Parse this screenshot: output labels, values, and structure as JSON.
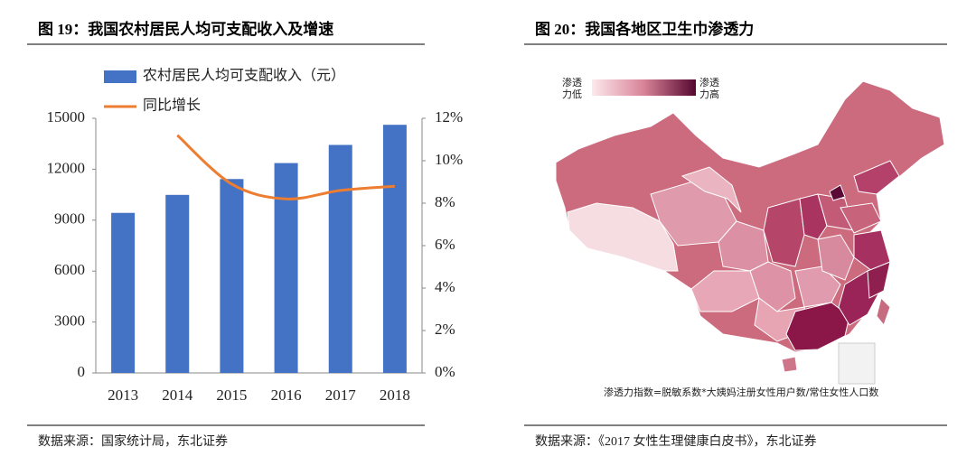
{
  "chart_data": {
    "type": "combo",
    "title": "图 19：我国农村居民人均可支配收入及增速",
    "categories": [
      "2013",
      "2014",
      "2015",
      "2016",
      "2017",
      "2018"
    ],
    "series": [
      {
        "name": "农村居民人均可支配收入（元）",
        "type": "bar",
        "color": "#4472c4",
        "values": [
          9430,
          10489,
          11422,
          12363,
          13432,
          14617
        ]
      },
      {
        "name": "同比增长",
        "type": "line",
        "axis": "y2",
        "color": "#ed7d31",
        "values": [
          null,
          11.2,
          8.9,
          8.2,
          8.6,
          8.8
        ]
      }
    ],
    "ylim": [
      0,
      15000
    ],
    "yticks": [
      0,
      3000,
      6000,
      9000,
      12000,
      15000
    ],
    "y2lim": [
      0,
      12
    ],
    "y2ticks": [
      {
        "value": 0,
        "label": "0%"
      },
      {
        "value": 2,
        "label": "2%"
      },
      {
        "value": 4,
        "label": "4%"
      },
      {
        "value": 6,
        "label": "6%"
      },
      {
        "value": 8,
        "label": "8%"
      },
      {
        "value": 10,
        "label": "10%"
      },
      {
        "value": 12,
        "label": "12%"
      }
    ],
    "legend": "top-left",
    "source": "数据来源：国家统计局，东北证券"
  },
  "map": {
    "title": "图 20：我国各地区卫生巾渗透力",
    "legend_low": [
      "渗透",
      "力低"
    ],
    "legend_high": [
      "渗透",
      "力高"
    ],
    "formula": "渗透力指数=脱敏系数*大姨妈注册女性用户数/常住女性人口数",
    "source": "数据来源：《2017 女性生理健康白皮书》，东北证券"
  }
}
